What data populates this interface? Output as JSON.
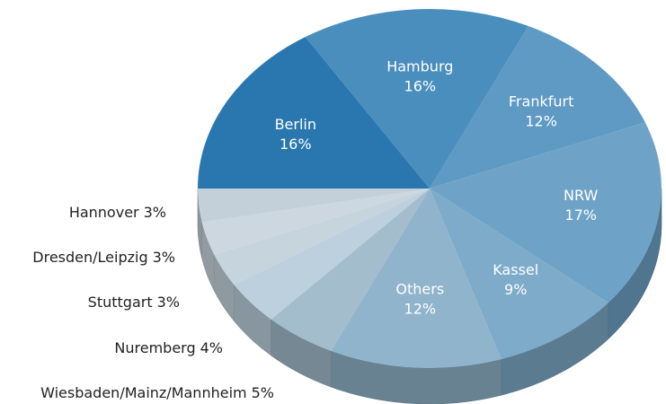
{
  "chart_data": {
    "type": "pie",
    "categories": [
      "Berlin",
      "Hamburg",
      "Frankfurt",
      "NRW",
      "Kassel",
      "Others",
      "Wiesbaden/Mainz/Mannheim",
      "Nuremberg",
      "Stuttgart",
      "Dresden/Leipzig",
      "Hannover"
    ],
    "values": [
      16,
      16,
      12,
      17,
      9,
      12,
      5,
      4,
      3,
      3,
      3
    ],
    "value_labels": [
      "16%",
      "16%",
      "12%",
      "17%",
      "9%",
      "12%",
      "5%",
      "4%",
      "3%",
      "3%",
      "3%"
    ],
    "colors": [
      "#2a77b0",
      "#4a8ebd",
      "#5e9ac4",
      "#6ea3c7",
      "#7eabc9",
      "#90b4cb",
      "#a4bdcc",
      "#bdd0dd",
      "#c6d4de",
      "#ccd7e0",
      "#c3cfd9"
    ]
  }
}
